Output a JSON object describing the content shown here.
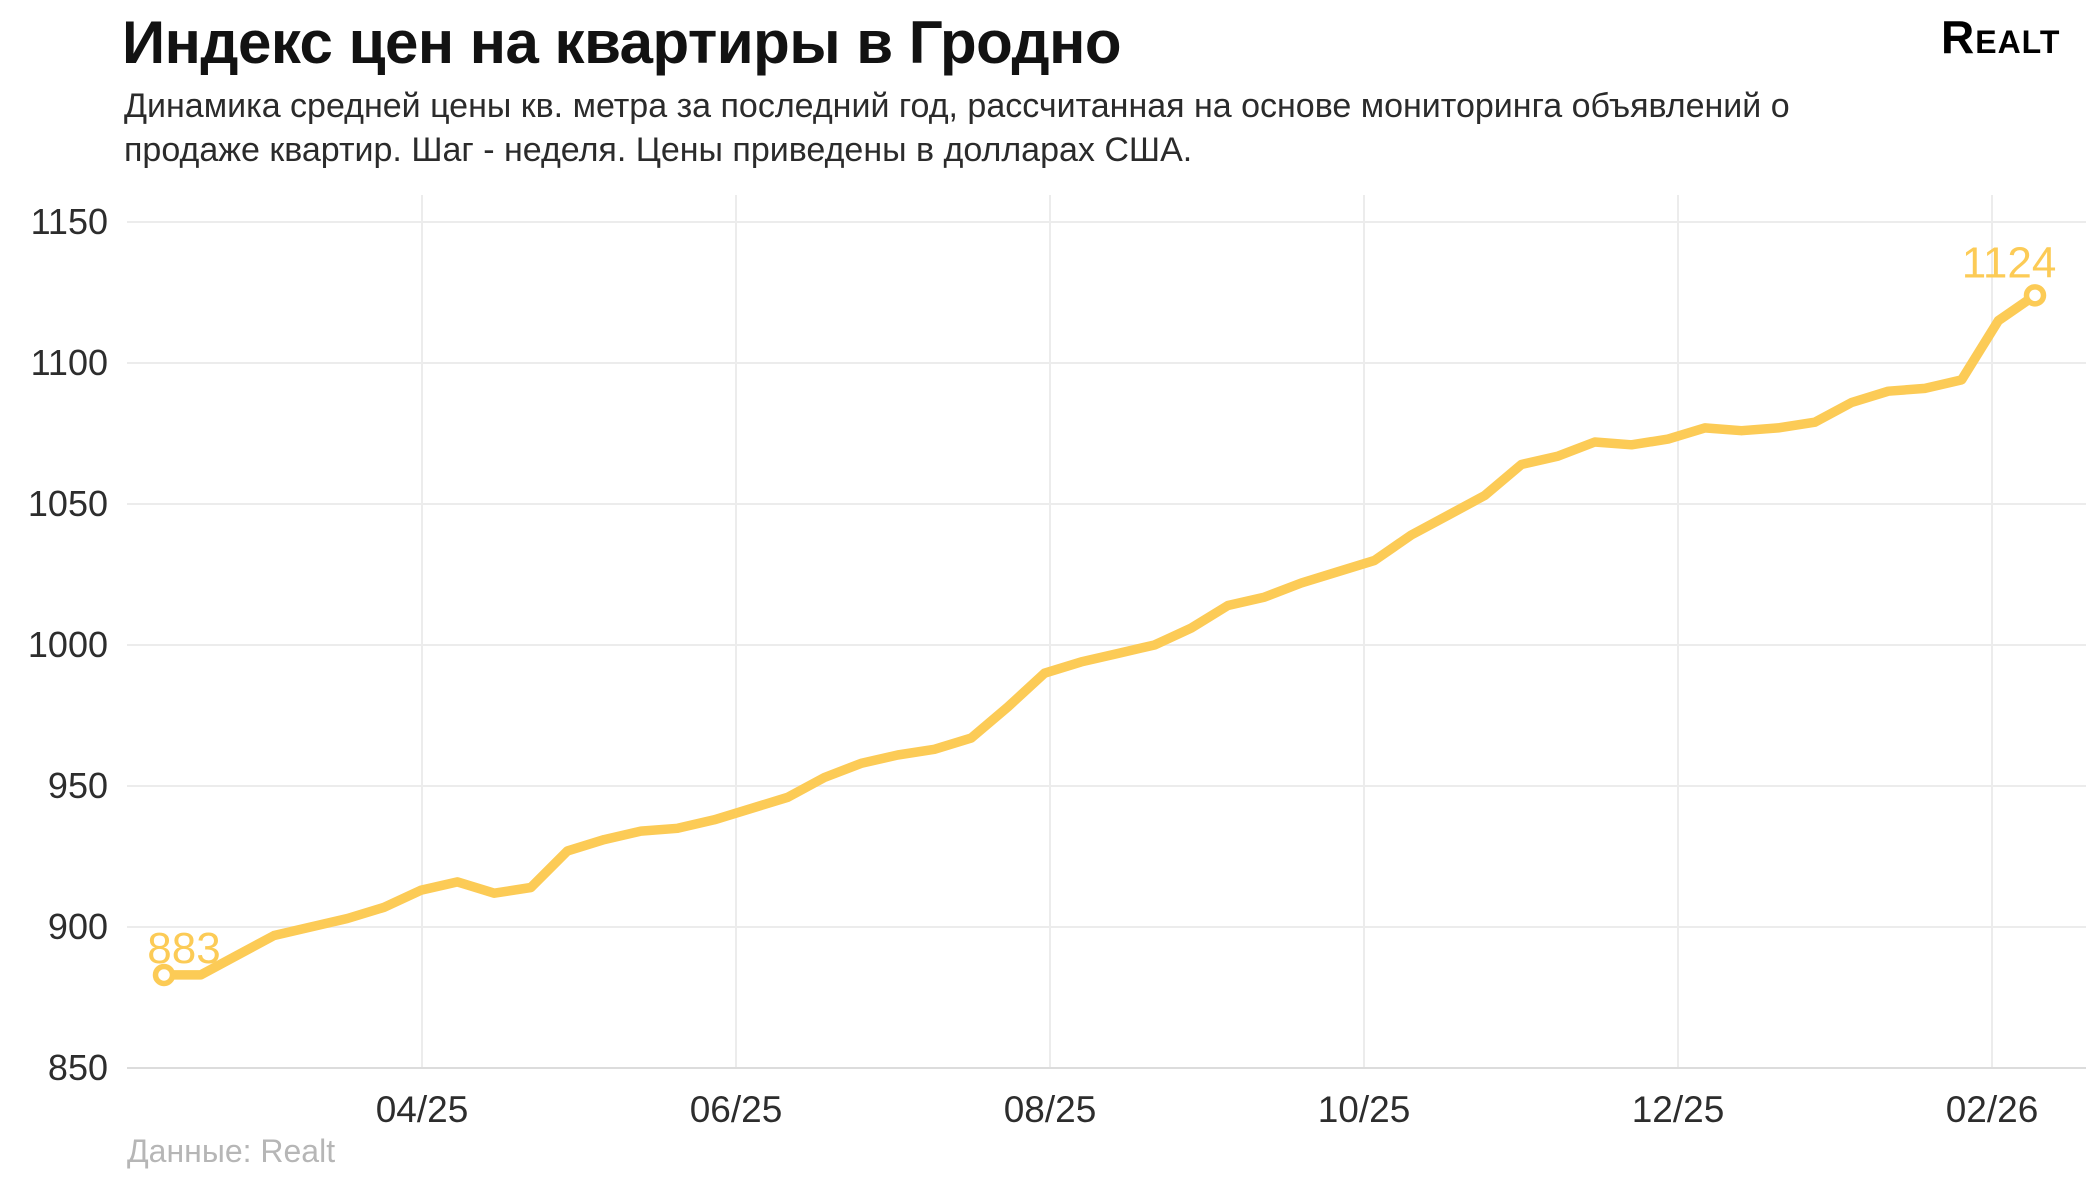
{
  "header": {
    "title": "Индекс цен на квартиры в Гродно",
    "subtitle": "Динамика средней цены кв. метра за последний год, рассчитанная на основе мониторинга объявлений о продаже квартир. Шаг - неделя. Цены приведены в долларах США."
  },
  "brand": {
    "logo_text": "Realt"
  },
  "footer": {
    "source_note": "Данные: Realt"
  },
  "chart_data": {
    "type": "line",
    "title": "Индекс цен на квартиры в Гродно",
    "step": "неделя",
    "currency": "доллары США",
    "x_tick_labels": [
      "04/25",
      "06/25",
      "08/25",
      "10/25",
      "12/25",
      "02/26"
    ],
    "y_ticks": [
      850,
      900,
      950,
      1000,
      1050,
      1100,
      1150
    ],
    "ylim": [
      850,
      1150
    ],
    "grid": true,
    "legend_position": "none",
    "line_color": "#FCCB56",
    "first_point_label": "883",
    "last_point_label": "1124",
    "series": [
      {
        "name": "Средняя цена кв. метра, USD",
        "values": [
          883,
          883,
          890,
          897,
          900,
          903,
          907,
          913,
          916,
          912,
          914,
          927,
          931,
          934,
          935,
          938,
          942,
          946,
          953,
          958,
          961,
          963,
          967,
          978,
          990,
          994,
          997,
          1000,
          1006,
          1014,
          1017,
          1022,
          1026,
          1030,
          1039,
          1046,
          1053,
          1064,
          1067,
          1072,
          1071,
          1073,
          1077,
          1076,
          1077,
          1079,
          1086,
          1090,
          1091,
          1094,
          1115,
          1124
        ]
      }
    ]
  }
}
